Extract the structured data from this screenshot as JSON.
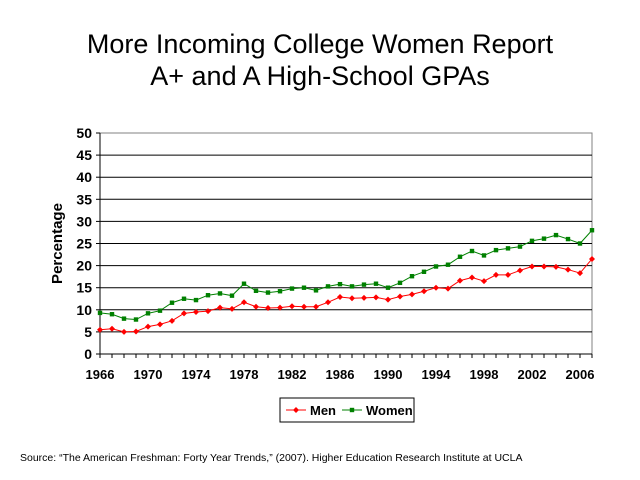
{
  "chart_data": {
    "type": "line",
    "title_line1": "More Incoming College Women Report",
    "title_line2": "A+ and A High-School GPAs",
    "xlabel": "",
    "ylabel": "Percentage",
    "xlim": [
      1966,
      2007
    ],
    "ylim": [
      0,
      50
    ],
    "x_ticks": [
      "1966",
      "1970",
      "1974",
      "1978",
      "1982",
      "1986",
      "1990",
      "1994",
      "1998",
      "2002",
      "2006"
    ],
    "y_ticks": [
      "0",
      "5",
      "10",
      "15",
      "20",
      "25",
      "30",
      "35",
      "40",
      "45",
      "50"
    ],
    "grid": "horizontal",
    "legend": "bottom-center",
    "x": [
      1966,
      1967,
      1968,
      1969,
      1970,
      1971,
      1972,
      1973,
      1974,
      1975,
      1976,
      1977,
      1978,
      1979,
      1980,
      1981,
      1982,
      1983,
      1984,
      1985,
      1986,
      1987,
      1988,
      1989,
      1990,
      1991,
      1992,
      1993,
      1994,
      1995,
      1996,
      1997,
      1998,
      1999,
      2000,
      2001,
      2002,
      2003,
      2004,
      2005,
      2006,
      2007
    ],
    "series": [
      {
        "name": "Men",
        "color": "#ff0000",
        "marker": "diamond",
        "values": [
          5.5,
          5.7,
          5.0,
          5.1,
          6.2,
          6.7,
          7.5,
          9.2,
          9.5,
          9.7,
          10.5,
          10.2,
          11.7,
          10.7,
          10.4,
          10.5,
          10.8,
          10.7,
          10.7,
          11.7,
          12.9,
          12.6,
          12.7,
          12.8,
          12.3,
          13.0,
          13.5,
          14.2,
          15.0,
          14.8,
          16.6,
          17.3,
          16.5,
          17.9,
          17.9,
          18.9,
          19.8,
          19.8,
          19.7,
          19.1,
          18.3,
          21.5
        ]
      },
      {
        "name": "Women",
        "color": "#008000",
        "marker": "square",
        "values": [
          9.3,
          9.0,
          8.0,
          7.8,
          9.2,
          9.8,
          11.6,
          12.5,
          12.2,
          13.3,
          13.7,
          13.2,
          15.9,
          14.3,
          13.9,
          14.2,
          14.8,
          15.0,
          14.4,
          15.3,
          15.8,
          15.3,
          15.7,
          15.9,
          15.0,
          16.1,
          17.6,
          18.6,
          19.8,
          20.2,
          22.0,
          23.3,
          22.3,
          23.5,
          23.9,
          24.3,
          25.6,
          26.1,
          26.9,
          26.0,
          25.0,
          28.0
        ]
      }
    ]
  },
  "source": "Source: “The American Freshman: Forty Year Trends,” (2007). Higher Education Research Institute at UCLA"
}
